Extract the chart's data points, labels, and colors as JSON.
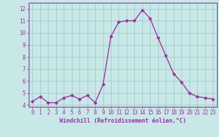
{
  "x": [
    0,
    1,
    2,
    3,
    4,
    5,
    6,
    7,
    8,
    9,
    10,
    11,
    12,
    13,
    14,
    15,
    16,
    17,
    18,
    19,
    20,
    21,
    22,
    23
  ],
  "y": [
    4.3,
    4.7,
    4.2,
    4.2,
    4.6,
    4.8,
    4.5,
    4.8,
    4.2,
    5.7,
    9.7,
    10.9,
    11.0,
    11.0,
    11.9,
    11.2,
    9.6,
    8.1,
    6.6,
    5.9,
    5.0,
    4.7,
    4.6,
    4.5
  ],
  "line_color": "#9b30a0",
  "marker_color": "#9b30a0",
  "bg_color": "#c8e8e8",
  "grid_color": "#a0c8c8",
  "xlabel": "Windchill (Refroidissement éolien,°C)",
  "xlim": [
    -0.5,
    23.5
  ],
  "ylim": [
    3.85,
    12.5
  ],
  "yticks": [
    4,
    5,
    6,
    7,
    8,
    9,
    10,
    11,
    12
  ],
  "xticks": [
    0,
    1,
    2,
    3,
    4,
    5,
    6,
    7,
    8,
    9,
    10,
    11,
    12,
    13,
    14,
    15,
    16,
    17,
    18,
    19,
    20,
    21,
    22,
    23
  ],
  "xlabel_fontsize": 6.0,
  "tick_fontsize": 5.5,
  "line_width": 1.0,
  "marker_size": 2.5
}
